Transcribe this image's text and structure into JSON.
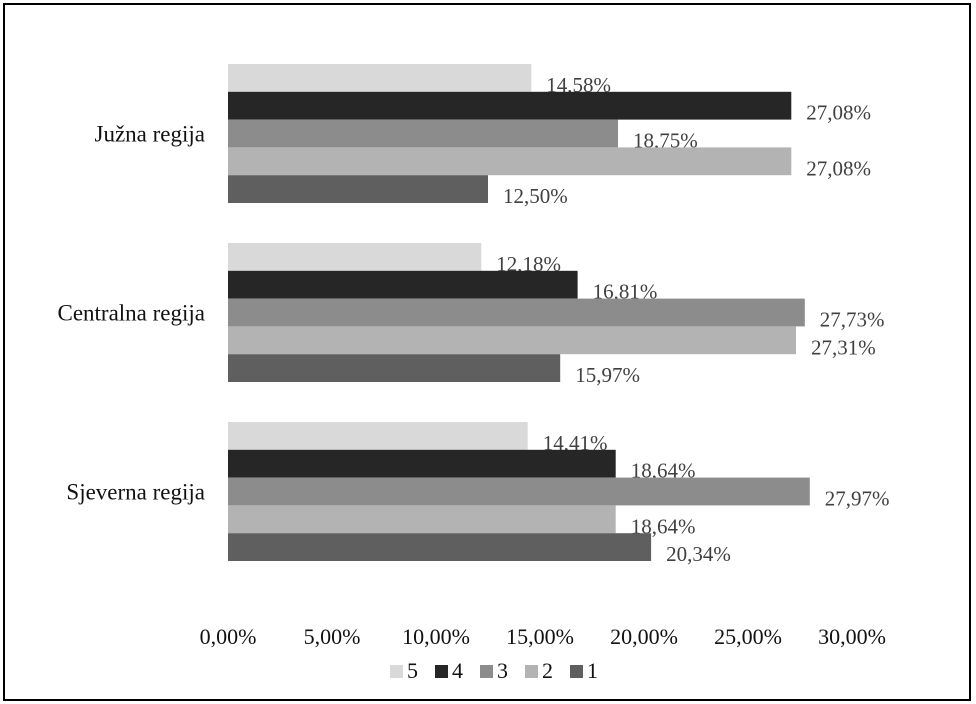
{
  "chart_data": {
    "type": "bar",
    "orientation": "horizontal",
    "categories": [
      "Južna regija",
      "Centralna regija",
      "Sjeverna regija"
    ],
    "series": [
      {
        "name": "5",
        "color": "#d9d9d9",
        "values": [
          14.58,
          12.18,
          14.41
        ],
        "labels": [
          "14,58%",
          "12,18%",
          "14,41%"
        ]
      },
      {
        "name": "4",
        "color": "#262626",
        "values": [
          27.08,
          16.81,
          18.64
        ],
        "labels": [
          "27,08%",
          "16,81%",
          "18,64%"
        ]
      },
      {
        "name": "3",
        "color": "#8c8c8c",
        "values": [
          18.75,
          27.73,
          27.97
        ],
        "labels": [
          "18,75%",
          "27,73%",
          "27,97%"
        ]
      },
      {
        "name": "2",
        "color": "#b3b3b3",
        "values": [
          27.08,
          27.31,
          18.64
        ],
        "labels": [
          "27,08%",
          "27,31%",
          "18,64%"
        ]
      },
      {
        "name": "1",
        "color": "#5f5f5f",
        "values": [
          12.5,
          15.97,
          20.34
        ],
        "labels": [
          "12,50%",
          "15,97%",
          "20,34%"
        ]
      }
    ],
    "xlim": [
      0,
      30
    ],
    "xticks": [
      0,
      5,
      10,
      15,
      20,
      25,
      30
    ],
    "xtick_labels": [
      "0,00%",
      "5,00%",
      "10,00%",
      "15,00%",
      "20,00%",
      "25,00%",
      "30,00%"
    ],
    "grid": false,
    "legend_position": "bottom",
    "legend_order": [
      "5",
      "4",
      "3",
      "2",
      "1"
    ],
    "title": "",
    "xlabel": "",
    "ylabel": ""
  }
}
